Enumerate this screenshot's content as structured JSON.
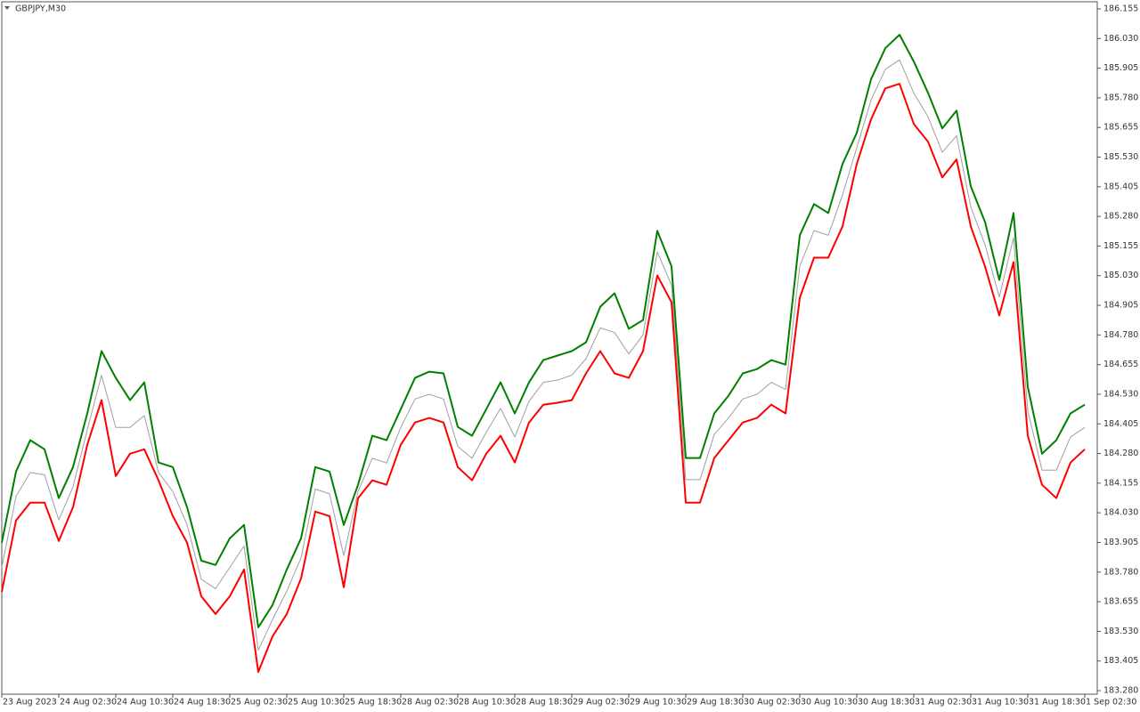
{
  "chart_data": {
    "type": "line",
    "title": "GBPJPY,M30",
    "categories": [
      "23 Aug 2023",
      null,
      null,
      null,
      "24 Aug 02:30",
      null,
      null,
      null,
      "24 Aug 10:30",
      null,
      null,
      null,
      "24 Aug 18:30",
      null,
      null,
      null,
      "25 Aug 02:30",
      null,
      null,
      null,
      "25 Aug 10:30",
      null,
      null,
      null,
      "25 Aug 18:30",
      null,
      null,
      null,
      "28 Aug 02:30",
      null,
      null,
      null,
      "28 Aug 10:30",
      null,
      null,
      null,
      "28 Aug 18:30",
      null,
      null,
      null,
      "29 Aug 02:30",
      null,
      null,
      null,
      "29 Aug 10:30",
      null,
      null,
      null,
      "29 Aug 18:30",
      null,
      null,
      null,
      "30 Aug 02:30",
      null,
      null,
      null,
      "30 Aug 10:30",
      null,
      null,
      null,
      "30 Aug 18:30",
      null,
      null,
      null,
      "31 Aug 02:30",
      null,
      null,
      null,
      "31 Aug 10:30",
      null,
      null,
      null,
      "31 Aug 18:30",
      null,
      null,
      null,
      "1 Sep 02:30"
    ],
    "series": [
      {
        "color": "#a0a0a0",
        "values": [
          183.8,
          184.1,
          184.2,
          184.19,
          184.0,
          184.14,
          184.38,
          184.61,
          184.39,
          184.39,
          184.44,
          184.2,
          184.12,
          183.98,
          183.75,
          183.71,
          183.8,
          183.89,
          183.45,
          183.58,
          183.7,
          183.84,
          184.13,
          184.11,
          183.85,
          184.12,
          184.26,
          184.24,
          184.39,
          184.51,
          184.53,
          184.51,
          184.31,
          184.26,
          184.37,
          184.47,
          184.35,
          184.5,
          184.58,
          184.59,
          184.61,
          184.68,
          184.81,
          184.79,
          184.7,
          184.78,
          185.13,
          184.99,
          184.17,
          184.17,
          184.36,
          184.43,
          184.51,
          184.53,
          184.58,
          184.55,
          185.07,
          185.22,
          185.2,
          185.37,
          185.57,
          185.77,
          185.9,
          185.94,
          185.8,
          185.7,
          185.55,
          185.62,
          185.32,
          185.16,
          184.94,
          185.19,
          184.46,
          184.21,
          184.21,
          184.35,
          184.39
        ]
      },
      {
        "color": "#008000",
        "values": [
          183.904,
          184.204,
          184.336,
          184.298,
          184.092,
          184.223,
          184.449,
          184.712,
          184.599,
          184.505,
          184.58,
          184.242,
          184.223,
          184.054,
          183.828,
          183.81,
          183.922,
          183.979,
          183.547,
          183.641,
          183.791,
          183.922,
          184.223,
          184.204,
          183.979,
          184.148,
          184.355,
          184.336,
          184.467,
          184.599,
          184.625,
          184.618,
          184.392,
          184.355,
          184.467,
          184.58,
          184.449,
          184.58,
          184.674,
          184.693,
          184.712,
          184.749,
          184.899,
          184.956,
          184.806,
          184.843,
          185.219,
          185.069,
          184.261,
          184.261,
          184.449,
          184.524,
          184.618,
          184.636,
          184.674,
          184.655,
          185.2,
          185.332,
          185.294,
          185.501,
          185.632,
          185.858,
          185.989,
          186.046,
          185.933,
          185.801,
          185.651,
          185.726,
          185.407,
          185.256,
          185.012,
          185.294,
          184.561,
          184.279,
          184.336,
          184.449,
          184.486
        ]
      },
      {
        "color": "#ff0000",
        "values": [
          183.697,
          183.998,
          184.073,
          184.073,
          183.911,
          184.054,
          184.317,
          184.505,
          184.185,
          184.279,
          184.298,
          184.167,
          184.016,
          183.904,
          183.678,
          183.603,
          183.678,
          183.791,
          183.359,
          183.509,
          183.603,
          183.753,
          184.035,
          184.016,
          183.716,
          184.092,
          184.167,
          184.148,
          184.317,
          184.411,
          184.43,
          184.411,
          184.223,
          184.167,
          184.279,
          184.355,
          184.242,
          184.411,
          184.486,
          184.494,
          184.505,
          184.618,
          184.712,
          184.618,
          184.599,
          184.712,
          185.031,
          184.918,
          184.073,
          184.073,
          184.261,
          184.336,
          184.411,
          184.43,
          184.486,
          184.449,
          184.937,
          185.106,
          185.106,
          185.238,
          185.501,
          185.689,
          185.82,
          185.839,
          185.67,
          185.595,
          185.444,
          185.52,
          185.238,
          185.069,
          184.862,
          185.087,
          184.355,
          184.148,
          184.092,
          184.242,
          184.298
        ]
      }
    ],
    "ylim": [
      183.265,
      186.185
    ],
    "yticks": [
      186.155,
      {
        "value": 186.03,
        "label": "186.030"
      },
      185.905,
      {
        "value": 185.78,
        "label": "185.780"
      },
      185.655,
      {
        "value": 185.53,
        "label": "185.530"
      },
      185.405,
      {
        "value": 185.28,
        "label": "185.280"
      },
      185.155,
      {
        "value": 185.03,
        "label": "185.030"
      },
      184.905,
      {
        "value": 184.78,
        "label": "184.780"
      },
      184.655,
      {
        "value": 184.53,
        "label": "184.530"
      },
      184.405,
      {
        "value": 184.28,
        "label": "184.280"
      },
      184.155,
      {
        "value": 184.03,
        "label": "184.030"
      },
      183.905,
      {
        "value": 183.78,
        "label": "183.780"
      },
      183.655,
      {
        "value": 183.53,
        "label": "183.530"
      },
      183.405,
      {
        "value": 183.28,
        "label": "183.280"
      }
    ],
    "grid": false
  }
}
